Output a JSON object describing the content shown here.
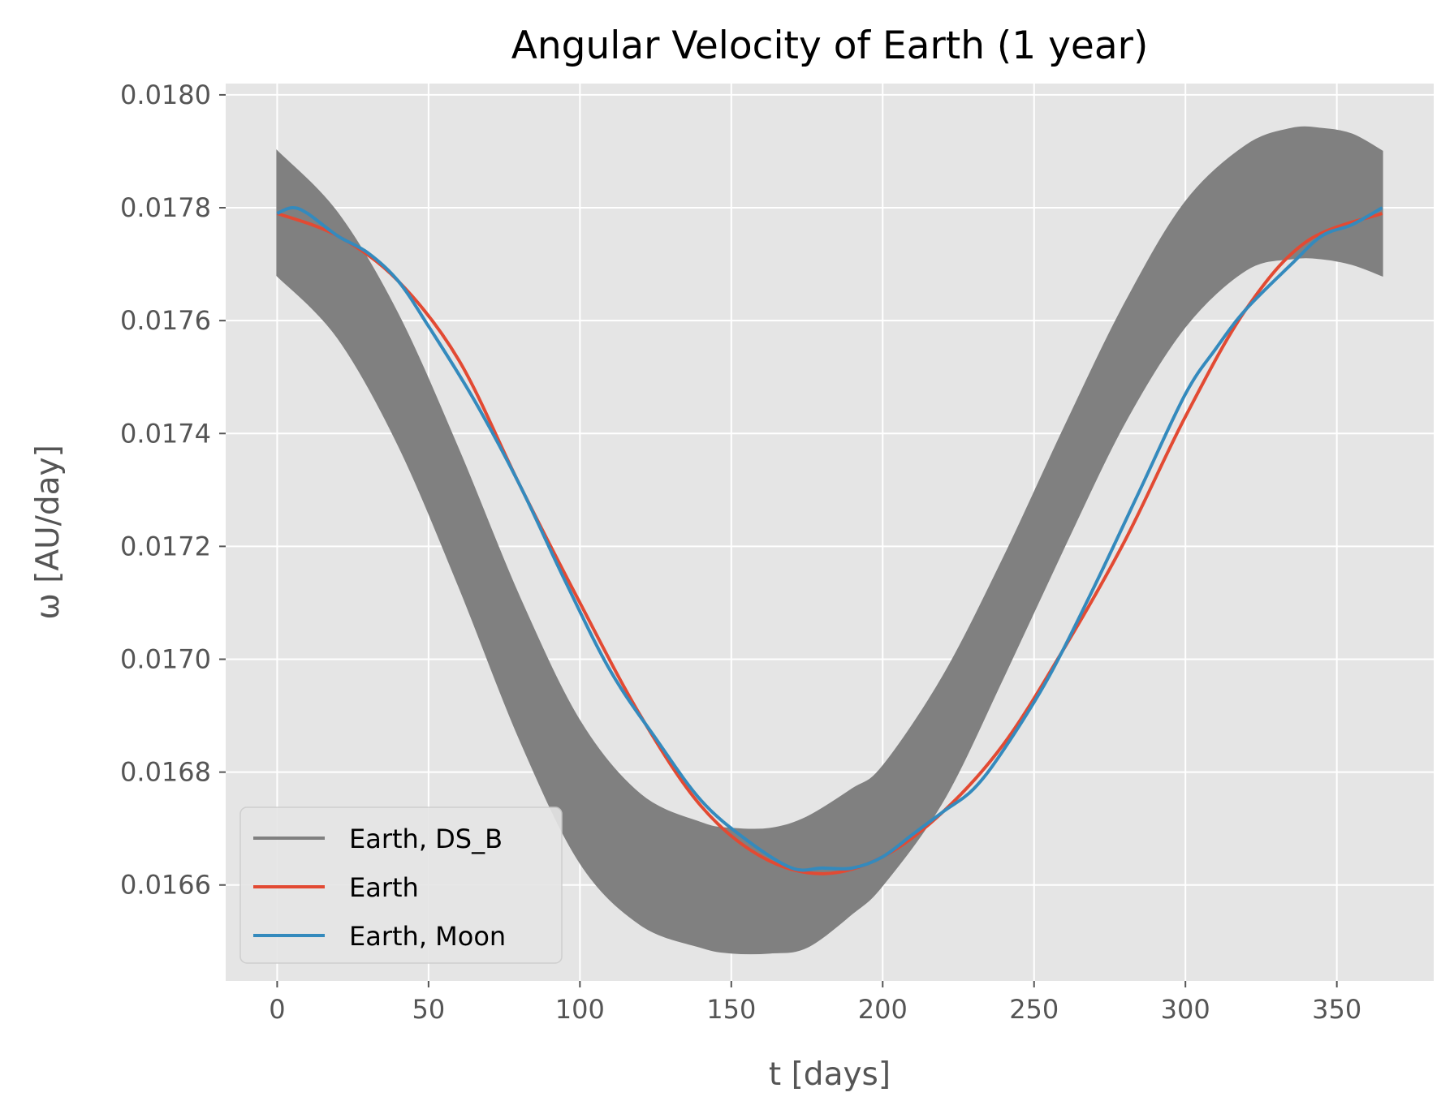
{
  "chart_data": {
    "type": "line",
    "title": "Angular Velocity of Earth (1 year)",
    "xlabel": "t [days]",
    "ylabel": "ω [AU/day]",
    "xlim": [
      -17,
      382
    ],
    "ylim": [
      0.01643,
      0.01802
    ],
    "xticks": [
      0,
      50,
      100,
      150,
      200,
      250,
      300,
      350
    ],
    "xtick_labels": [
      "0",
      "50",
      "100",
      "150",
      "200",
      "250",
      "300",
      "350"
    ],
    "yticks": [
      0.0166,
      0.0168,
      0.017,
      0.0172,
      0.0174,
      0.0176,
      0.0178,
      0.018
    ],
    "ytick_labels": [
      "0.0166",
      "0.0168",
      "0.0170",
      "0.0172",
      "0.0174",
      "0.0176",
      "0.0178",
      "0.0180"
    ],
    "grid": true,
    "legend_position": "lower-left",
    "background_color": "#e5e5e5",
    "series": [
      {
        "name": "Earth, DS_B",
        "color": "#808080",
        "style": "band",
        "x": [
          0,
          20,
          40,
          60,
          80,
          100,
          120,
          140,
          150,
          163,
          175,
          190,
          200,
          220,
          240,
          260,
          280,
          300,
          320,
          335,
          345,
          355,
          365
        ],
        "upper": [
          0.0179,
          0.01779,
          0.01761,
          0.01737,
          0.01711,
          0.01689,
          0.01676,
          0.01671,
          0.0167,
          0.0167,
          0.01672,
          0.01677,
          0.01681,
          0.01697,
          0.01718,
          0.01741,
          0.01763,
          0.01781,
          0.01791,
          0.01794,
          0.01794,
          0.01793,
          0.0179
        ],
        "lower": [
          0.01768,
          0.01757,
          0.01738,
          0.01713,
          0.01686,
          0.01664,
          0.01653,
          0.01649,
          0.01648,
          0.01648,
          0.01649,
          0.01655,
          0.0166,
          0.01675,
          0.01697,
          0.0172,
          0.01742,
          0.01759,
          0.01769,
          0.01771,
          0.01771,
          0.0177,
          0.01768
        ]
      },
      {
        "name": "Earth",
        "color": "#e24a33",
        "style": "line",
        "x": [
          0,
          20,
          40,
          60,
          80,
          100,
          120,
          140,
          160,
          180,
          200,
          220,
          240,
          260,
          280,
          300,
          320,
          340,
          365
        ],
        "y": [
          0.01779,
          0.01775,
          0.01767,
          0.01753,
          0.01731,
          0.0171,
          0.0169,
          0.01674,
          0.01665,
          0.01662,
          0.01665,
          0.01673,
          0.01685,
          0.01702,
          0.01721,
          0.01743,
          0.01762,
          0.01774,
          0.01779
        ]
      },
      {
        "name": "Earth, Moon",
        "color": "#348abd",
        "style": "line",
        "x": [
          0,
          5,
          10,
          20,
          30,
          40,
          50,
          65,
          80,
          95,
          110,
          125,
          140,
          155,
          170,
          180,
          190,
          200,
          210,
          220,
          230,
          240,
          255,
          270,
          285,
          300,
          310,
          320,
          335,
          345,
          355,
          365
        ],
        "y": [
          0.01779,
          0.0178,
          0.01779,
          0.01775,
          0.01772,
          0.01767,
          0.01759,
          0.01746,
          0.01731,
          0.01714,
          0.01698,
          0.01686,
          0.01675,
          0.01668,
          0.01663,
          0.01663,
          0.01663,
          0.01665,
          0.01669,
          0.01673,
          0.01677,
          0.01684,
          0.01697,
          0.01713,
          0.0173,
          0.01747,
          0.01755,
          0.01762,
          0.0177,
          0.01775,
          0.01777,
          0.0178
        ]
      }
    ]
  }
}
